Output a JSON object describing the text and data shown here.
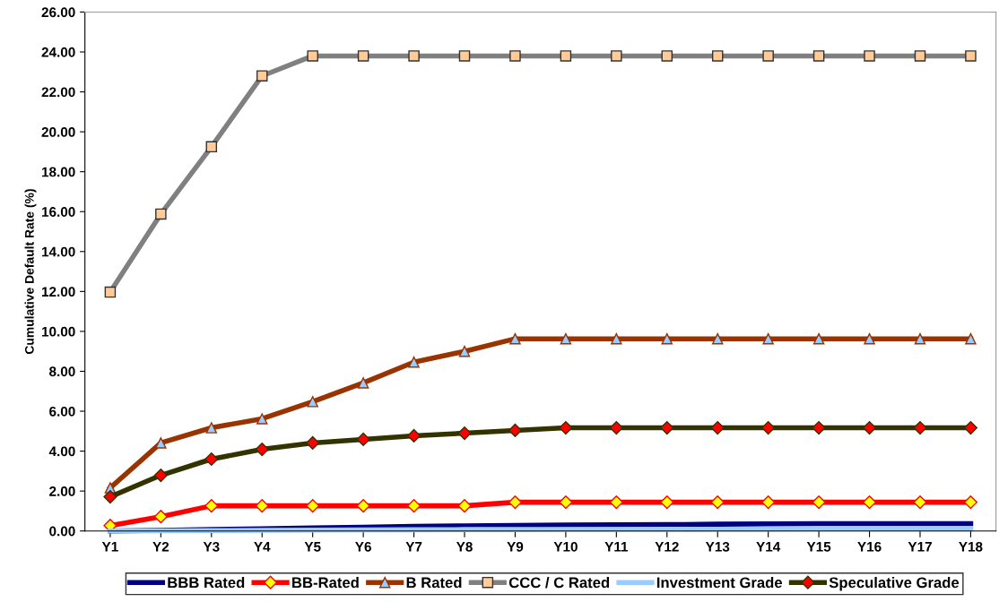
{
  "chart_data": {
    "type": "line",
    "ylabel": "Cumulative Default Rate (%)",
    "categories": [
      "Y1",
      "Y2",
      "Y3",
      "Y4",
      "Y5",
      "Y6",
      "Y7",
      "Y8",
      "Y9",
      "Y10",
      "Y11",
      "Y12",
      "Y13",
      "Y14",
      "Y15",
      "Y16",
      "Y17",
      "Y18"
    ],
    "ylim": [
      0,
      26
    ],
    "yticks": [
      {
        "value": 0,
        "label": "0.00"
      },
      {
        "value": 2,
        "label": "2.00"
      },
      {
        "value": 4,
        "label": "4.00"
      },
      {
        "value": 6,
        "label": "6.00"
      },
      {
        "value": 8,
        "label": "8.00"
      },
      {
        "value": 10,
        "label": "10.00"
      },
      {
        "value": 12,
        "label": "12.00"
      },
      {
        "value": 14,
        "label": "14.00"
      },
      {
        "value": 16,
        "label": "16.00"
      },
      {
        "value": 18,
        "label": "18.00"
      },
      {
        "value": 20,
        "label": "20.00"
      },
      {
        "value": 22,
        "label": "22.00"
      },
      {
        "value": 24,
        "label": "24.00"
      },
      {
        "value": 26,
        "label": "26.00"
      }
    ],
    "grid": false,
    "legend": "bottom",
    "series": [
      {
        "name": "BBB Rated",
        "color": "#000080",
        "marker": "none",
        "values": [
          0.0,
          0.03,
          0.07,
          0.11,
          0.15,
          0.19,
          0.23,
          0.26,
          0.28,
          0.3,
          0.31,
          0.32,
          0.34,
          0.36,
          0.37,
          0.37,
          0.37,
          0.37
        ]
      },
      {
        "name": "BB-Rated",
        "color": "#ff0000",
        "marker": "diamond",
        "values": [
          0.27,
          0.72,
          1.26,
          1.26,
          1.26,
          1.26,
          1.26,
          1.26,
          1.44,
          1.44,
          1.44,
          1.44,
          1.44,
          1.44,
          1.44,
          1.44,
          1.44,
          1.44
        ]
      },
      {
        "name": "B Rated",
        "color": "#993300",
        "marker": "triangle",
        "values": [
          2.16,
          4.41,
          5.17,
          5.62,
          6.48,
          7.42,
          8.46,
          9.0,
          9.63,
          9.63,
          9.63,
          9.63,
          9.63,
          9.63,
          9.63,
          9.63,
          9.63,
          9.63
        ]
      },
      {
        "name": "CCC / C Rated",
        "color": "#808080",
        "marker": "square",
        "values": [
          11.97,
          15.88,
          19.25,
          22.8,
          23.8,
          23.8,
          23.8,
          23.8,
          23.8,
          23.8,
          23.8,
          23.8,
          23.8,
          23.8,
          23.8,
          23.8,
          23.8,
          23.8
        ]
      },
      {
        "name": "Investment Grade",
        "color": "#99ccff",
        "marker": "none",
        "values": [
          0.0,
          0.01,
          0.02,
          0.03,
          0.04,
          0.05,
          0.06,
          0.07,
          0.07,
          0.08,
          0.08,
          0.08,
          0.09,
          0.09,
          0.1,
          0.1,
          0.1,
          0.1
        ]
      },
      {
        "name": "Speculative Grade",
        "color": "#333300",
        "marker": "diamond",
        "values": [
          1.71,
          2.79,
          3.6,
          4.09,
          4.41,
          4.59,
          4.77,
          4.9,
          5.04,
          5.17,
          5.17,
          5.17,
          5.17,
          5.17,
          5.17,
          5.17,
          5.17,
          5.17
        ]
      }
    ]
  }
}
